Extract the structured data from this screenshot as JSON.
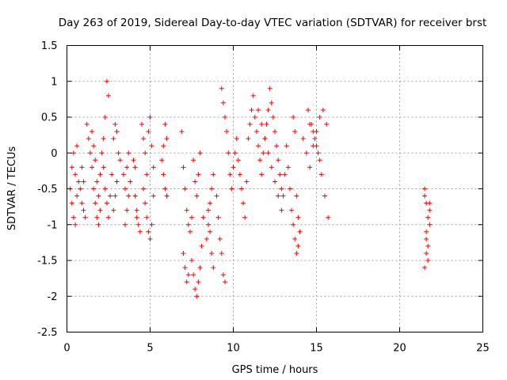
{
  "chart_data": {
    "type": "scatter",
    "title": "Day 263 of 2019, Sidereal Day-to-day VTEC variation (SDTVAR) for receiver brst",
    "xlabel": "GPS time / hours",
    "ylabel": "SDTVAR / TECUs",
    "xlim": [
      0,
      25
    ],
    "ylim": [
      -2.5,
      1.5
    ],
    "xticks": [
      0,
      5,
      10,
      15,
      20,
      25
    ],
    "yticks": [
      -2.5,
      -2,
      -1.5,
      -1,
      -0.5,
      0,
      0.5,
      1,
      1.5
    ],
    "xtick_labels": [
      "0",
      "5",
      "10",
      "15",
      "20",
      "25"
    ],
    "ytick_labels": [
      "-2.5",
      "-2",
      "-1.5",
      "-1",
      "-0.5",
      "0",
      "0.5",
      "1",
      "1.5"
    ],
    "grid": true,
    "marker": "+",
    "color": "#ff0000",
    "series": [
      {
        "name": "brst",
        "x": [
          0.2,
          0.3,
          0.4,
          0.5,
          0.6,
          0.7,
          0.3,
          0.4,
          0.5,
          0.6,
          0.8,
          0.9,
          1.0,
          1.1,
          0.9,
          1.0,
          1.2,
          1.3,
          1.4,
          1.5,
          1.6,
          1.7,
          1.8,
          1.9,
          2.0,
          1.5,
          1.6,
          1.7,
          1.8,
          1.9,
          2.0,
          2.1,
          2.2,
          2.3,
          2.4,
          2.5,
          2.2,
          2.3,
          2.4,
          2.5,
          2.6,
          2.7,
          2.8,
          2.9,
          3.0,
          3.1,
          2.8,
          2.9,
          3.0,
          3.2,
          3.4,
          3.5,
          3.6,
          3.7,
          3.5,
          3.6,
          3.7,
          3.8,
          4.0,
          4.1,
          4.2,
          4.3,
          4.4,
          4.1,
          4.2,
          4.5,
          4.6,
          4.7,
          4.8,
          4.6,
          4.7,
          4.8,
          4.9,
          5.0,
          5.1,
          5.2,
          4.9,
          5.0,
          5.1,
          5.2,
          5.7,
          5.8,
          5.9,
          6.0,
          5.8,
          5.9,
          6.0,
          6.9,
          7.0,
          7.1,
          7.2,
          7.3,
          7.4,
          7.5,
          7.0,
          7.1,
          7.2,
          7.3,
          7.6,
          7.7,
          7.8,
          7.9,
          8.0,
          7.5,
          7.6,
          7.7,
          7.8,
          7.9,
          8.0,
          8.1,
          8.2,
          8.4,
          8.5,
          8.6,
          8.7,
          8.8,
          8.5,
          8.6,
          8.7,
          8.8,
          9.0,
          9.1,
          9.2,
          9.3,
          9.4,
          9.5,
          9.3,
          9.4,
          9.5,
          9.6,
          9.7,
          9.8,
          9.9,
          10.0,
          10.1,
          10.2,
          10.3,
          10.4,
          10.5,
          10.6,
          10.7,
          10.8,
          10.9,
          11.0,
          11.1,
          11.2,
          11.3,
          11.4,
          11.5,
          11.6,
          11.7,
          11.8,
          11.9,
          12.0,
          12.1,
          12.2,
          12.3,
          12.4,
          12.5,
          12.6,
          12.7,
          12.8,
          12.9,
          13.0,
          11.5,
          11.7,
          11.9,
          12.1,
          12.3,
          12.5,
          12.7,
          12.9,
          13.1,
          13.2,
          13.3,
          13.4,
          13.5,
          13.6,
          13.7,
          13.8,
          13.9,
          14.0,
          13.6,
          13.7,
          13.8,
          13.9,
          14.2,
          14.4,
          14.6,
          14.8,
          15.0,
          15.2,
          15.4,
          15.6,
          14.5,
          14.7,
          14.9,
          15.1,
          15.3,
          15.5,
          15.7,
          14.6,
          14.8,
          15.0,
          15.2,
          21.5,
          21.5,
          21.6,
          21.6,
          21.6,
          21.7,
          21.7,
          21.8,
          21.8,
          21.5,
          21.6,
          21.7,
          21.8
        ],
        "y": [
          -0.5,
          -0.7,
          -0.9,
          -1.0,
          -0.6,
          -0.4,
          -0.2,
          0.0,
          -0.3,
          0.1,
          -0.5,
          -0.7,
          -0.8,
          -0.9,
          -0.2,
          -0.4,
          0.4,
          0.2,
          0.0,
          -0.2,
          -0.5,
          -0.7,
          -0.9,
          -1.0,
          -0.8,
          0.3,
          0.1,
          -0.1,
          -0.4,
          -0.6,
          -0.3,
          0.0,
          0.2,
          0.5,
          1.0,
          0.8,
          -0.2,
          -0.5,
          -0.7,
          -0.9,
          -0.6,
          -0.3,
          0.2,
          0.4,
          0.3,
          0.0,
          -0.8,
          -0.6,
          -0.4,
          -0.1,
          -0.3,
          -0.5,
          -0.2,
          0.0,
          -1.0,
          -0.8,
          -0.6,
          -0.4,
          -0.1,
          -0.2,
          -0.8,
          -1.0,
          -1.1,
          -0.6,
          -0.9,
          0.4,
          0.2,
          0.0,
          -0.3,
          -0.5,
          -0.7,
          -0.9,
          -1.1,
          -1.2,
          -1.0,
          -0.6,
          0.3,
          0.5,
          0.1,
          -0.2,
          -0.1,
          -0.3,
          -0.5,
          -0.6,
          0.1,
          0.4,
          0.2,
          0.3,
          -0.2,
          -0.5,
          -0.8,
          -1.0,
          -1.1,
          -0.9,
          -1.4,
          -1.6,
          -1.8,
          -1.7,
          -0.1,
          -0.4,
          -0.6,
          -0.3,
          0.0,
          -1.5,
          -1.7,
          -1.9,
          -2.0,
          -1.8,
          -1.6,
          -1.3,
          -0.9,
          -1.2,
          -1.0,
          -0.7,
          -0.5,
          -0.3,
          -0.8,
          -1.1,
          -1.4,
          -1.6,
          -0.6,
          -0.9,
          -1.2,
          -1.4,
          -1.7,
          -1.8,
          0.9,
          0.7,
          0.5,
          0.3,
          0.0,
          -0.3,
          -0.5,
          -0.2,
          0.0,
          0.2,
          -0.1,
          -0.3,
          -0.5,
          -0.7,
          -0.9,
          -0.4,
          0.2,
          0.4,
          0.6,
          0.8,
          0.5,
          0.3,
          0.1,
          -0.1,
          -0.3,
          0.0,
          0.2,
          0.4,
          0.6,
          0.9,
          0.7,
          0.5,
          0.3,
          0.1,
          -0.1,
          -0.3,
          -0.5,
          -0.6,
          0.6,
          0.4,
          0.2,
          0.0,
          -0.2,
          -0.4,
          -0.6,
          -0.8,
          -0.3,
          0.1,
          -0.2,
          -0.5,
          -0.8,
          -1.0,
          -1.2,
          -1.4,
          -1.3,
          -1.1,
          0.5,
          0.3,
          -0.6,
          -0.9,
          0.2,
          0.0,
          -0.2,
          0.1,
          0.3,
          0.5,
          0.6,
          0.4,
          0.6,
          0.4,
          0.2,
          0.0,
          -0.3,
          -0.6,
          -0.9,
          0.4,
          0.3,
          0.1,
          -0.1,
          -0.5,
          -1.6,
          -1.4,
          -0.7,
          -1.1,
          -0.9,
          -1.3,
          -0.8,
          -1.0,
          -0.6,
          -1.2,
          -1.5,
          -0.7
        ]
      }
    ]
  }
}
